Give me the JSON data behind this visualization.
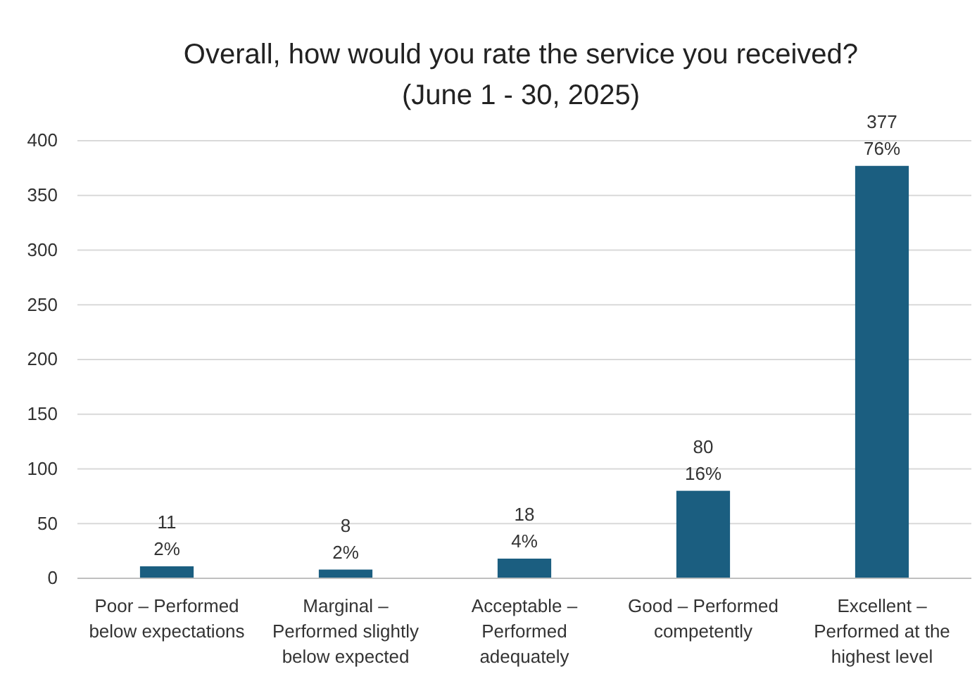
{
  "chart_data": {
    "type": "bar",
    "title": "Overall, how would you rate the service you received?",
    "subtitle": "(June 1 - 30, 2025)",
    "categories": [
      "Poor – Performed below expectations",
      "Marginal – Performed slightly below expected",
      "Acceptable – Performed adequately",
      "Good – Performed competently",
      "Excellent – Performed at the highest level"
    ],
    "values": [
      11,
      8,
      18,
      80,
      377
    ],
    "value_labels": [
      "11\n2%",
      "8\n2%",
      "18\n4%",
      "80\n16%",
      "377\n76%"
    ],
    "color": "#1b5e80",
    "ylim": [
      0,
      400
    ],
    "yticks": [
      0,
      50,
      100,
      150,
      200,
      250,
      300,
      350,
      400
    ],
    "grid": "y"
  }
}
